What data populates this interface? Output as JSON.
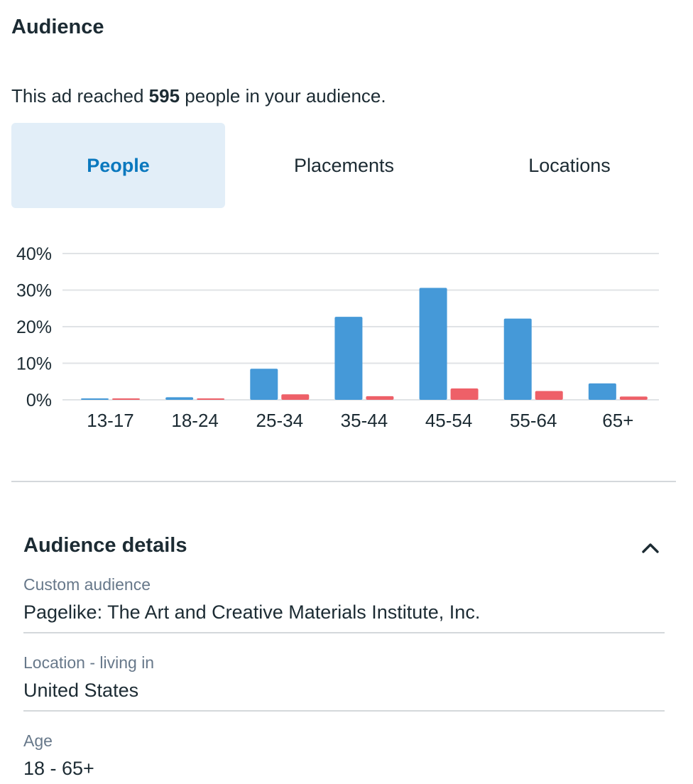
{
  "header": {
    "title": "Audience"
  },
  "reach": {
    "prefix": "This ad reached ",
    "count": "595",
    "suffix": " people in your audience."
  },
  "tabs": [
    {
      "label": "People",
      "active": true
    },
    {
      "label": "Placements",
      "active": false
    },
    {
      "label": "Locations",
      "active": false
    }
  ],
  "chart_data": {
    "type": "bar",
    "categories": [
      "13-17",
      "18-24",
      "25-34",
      "35-44",
      "45-54",
      "55-64",
      "65+"
    ],
    "series": [
      {
        "color": "#4599d8",
        "values": [
          0.2,
          0.7,
          8.5,
          22.7,
          30.6,
          22.2,
          4.5
        ]
      },
      {
        "color": "#ee6068",
        "values": [
          0.2,
          0.2,
          1.5,
          1.0,
          3.1,
          2.4,
          0.9
        ]
      }
    ],
    "yticks": [
      "0%",
      "10%",
      "20%",
      "30%",
      "40%"
    ],
    "ylim": [
      0,
      40
    ],
    "grid": true
  },
  "details": {
    "title": "Audience details",
    "toggle_icon": "chevron-up-icon",
    "fields": [
      {
        "label": "Custom audience",
        "value": "Pagelike: The Art and Creative Materials Institute, Inc."
      },
      {
        "label": "Location - living in",
        "value": "United States"
      },
      {
        "label": "Age",
        "value": "18 - 65+"
      }
    ]
  }
}
